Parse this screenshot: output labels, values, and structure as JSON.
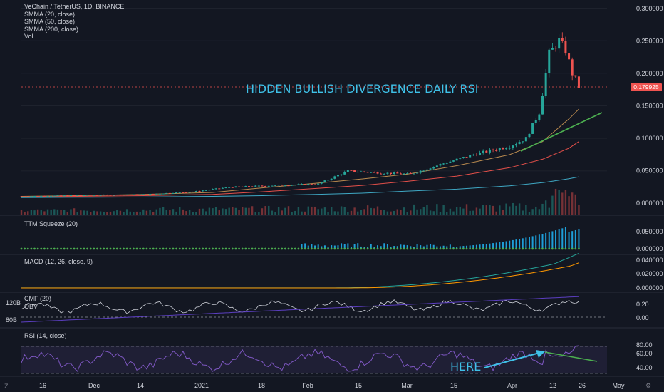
{
  "header": {
    "symbol": "VeChain / TetherUS, 1D, BINANCE",
    "indicators": [
      "SMMA (20, close)",
      "SMMA (50, close)",
      "SMMA (200, close)",
      "Vol"
    ]
  },
  "annotations": {
    "title": "HIDDEN BULLISH DIVERGENCE DAILY RSI",
    "here": "HERE"
  },
  "price_axis": {
    "labels": [
      "0.300000",
      "0.250000",
      "0.200000",
      "0.150000",
      "0.100000",
      "0.050000",
      "0.000000"
    ],
    "last_price": "0.179925"
  },
  "panes": {
    "ttm": {
      "title": "TTM Squeeze (20)",
      "labels": [
        "0.050000",
        "0.000000"
      ]
    },
    "macd": {
      "title": "MACD (12, 26, close, 9)",
      "labels": [
        "0.040000",
        "0.020000",
        "0.000000"
      ]
    },
    "cmf": {
      "title_cmf": "CMF (20)",
      "title_obv": "OBV",
      "labels": [
        "0.20",
        "0.00"
      ],
      "left_labels": [
        "120B",
        "80B"
      ]
    },
    "rsi": {
      "title": "RSI (14, close)",
      "labels": [
        "80.00",
        "60.00",
        "40.00"
      ]
    }
  },
  "time_axis": [
    "16",
    "Dec",
    "14",
    "2021",
    "18",
    "Feb",
    "15",
    "Mar",
    "15",
    "Apr",
    "12",
    "26",
    "May"
  ],
  "corner": {
    "left": "Z",
    "right": "⚙"
  },
  "colors": {
    "background": "#131722",
    "up": "#26a69a",
    "down": "#ef5350",
    "smma20": "#b98a4f",
    "smma50": "#e5504a",
    "smma200": "#3fa8c4",
    "trendline": "#4caf50",
    "annotation": "#3fc1e8",
    "rsi": "#7e57c2",
    "macd": "#26a69a",
    "signal": "#ff9800",
    "cmf": "#d1d4dc",
    "obv": "#5c3fc2"
  },
  "chart_data": {
    "type": "candlestick",
    "interval": "1D",
    "x_range": [
      "2020-11-03",
      "2021-04-21"
    ],
    "ylim": [
      0,
      0.3
    ],
    "close_keypoints": [
      {
        "date": "2020-11-03",
        "close": 0.011
      },
      {
        "date": "2020-11-20",
        "close": 0.0125
      },
      {
        "date": "2020-12-10",
        "close": 0.014
      },
      {
        "date": "2020-12-25",
        "close": 0.018
      },
      {
        "date": "2021-01-05",
        "close": 0.025
      },
      {
        "date": "2021-01-20",
        "close": 0.028
      },
      {
        "date": "2021-02-01",
        "close": 0.03
      },
      {
        "date": "2021-02-10",
        "close": 0.05
      },
      {
        "date": "2021-02-20",
        "close": 0.047
      },
      {
        "date": "2021-03-01",
        "close": 0.045
      },
      {
        "date": "2021-03-10",
        "close": 0.06
      },
      {
        "date": "2021-03-20",
        "close": 0.075
      },
      {
        "date": "2021-03-31",
        "close": 0.088
      },
      {
        "date": "2021-04-05",
        "close": 0.1
      },
      {
        "date": "2021-04-09",
        "close": 0.14
      },
      {
        "date": "2021-04-12",
        "close": 0.23
      },
      {
        "date": "2021-04-15",
        "close": 0.25
      },
      {
        "date": "2021-04-17",
        "close": 0.235
      },
      {
        "date": "2021-04-19",
        "close": 0.2
      },
      {
        "date": "2021-04-21",
        "close": 0.1799
      }
    ],
    "series": [
      {
        "name": "SMMA (20, close)",
        "values": [
          0.011,
          0.012,
          0.014,
          0.017,
          0.024,
          0.031,
          0.038,
          0.045,
          0.058,
          0.075,
          0.095,
          0.13,
          0.145
        ]
      },
      {
        "name": "SMMA (50, close)",
        "values": [
          0.01,
          0.011,
          0.012,
          0.014,
          0.018,
          0.023,
          0.028,
          0.034,
          0.042,
          0.055,
          0.068,
          0.085,
          0.095
        ]
      },
      {
        "name": "SMMA (200, close)",
        "values": [
          0.009,
          0.0095,
          0.01,
          0.011,
          0.012,
          0.014,
          0.016,
          0.019,
          0.022,
          0.027,
          0.032,
          0.038,
          0.041
        ]
      }
    ],
    "smma_dates": [
      "2020-11-03",
      "2020-11-20",
      "2020-12-10",
      "2020-12-31",
      "2021-01-15",
      "2021-01-31",
      "2021-02-15",
      "2021-02-28",
      "2021-03-15",
      "2021-03-31",
      "2021-04-10",
      "2021-04-18",
      "2021-04-21"
    ],
    "rsi_range": [
      40,
      80
    ],
    "rsi_levels": [
      70,
      30
    ]
  }
}
